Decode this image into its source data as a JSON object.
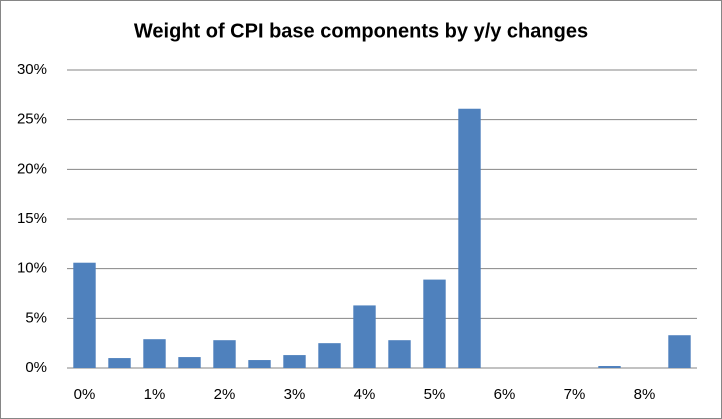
{
  "chart_data": {
    "type": "bar",
    "title": "Weight of CPI base components by y/y changes",
    "categories": [
      "0%",
      null,
      "1%",
      null,
      "2%",
      null,
      "3%",
      null,
      "4%",
      null,
      "5%",
      null,
      "6%",
      null,
      "7%",
      null,
      "8%",
      null
    ],
    "values": [
      10.6,
      1.0,
      2.9,
      1.1,
      2.8,
      0.8,
      1.3,
      2.5,
      6.3,
      2.8,
      8.9,
      26.1,
      0,
      0,
      0,
      0.2,
      0,
      3.3
    ],
    "color": "#4f81bd",
    "ylim": [
      0,
      30
    ],
    "yticks": [
      {
        "value": 0,
        "label": "0%"
      },
      {
        "value": 5,
        "label": "5%"
      },
      {
        "value": 10,
        "label": "10%"
      },
      {
        "value": 15,
        "label": "15%"
      },
      {
        "value": 20,
        "label": "20%"
      },
      {
        "value": 25,
        "label": "25%"
      },
      {
        "value": 30,
        "label": "30%"
      }
    ],
    "grid": true
  }
}
